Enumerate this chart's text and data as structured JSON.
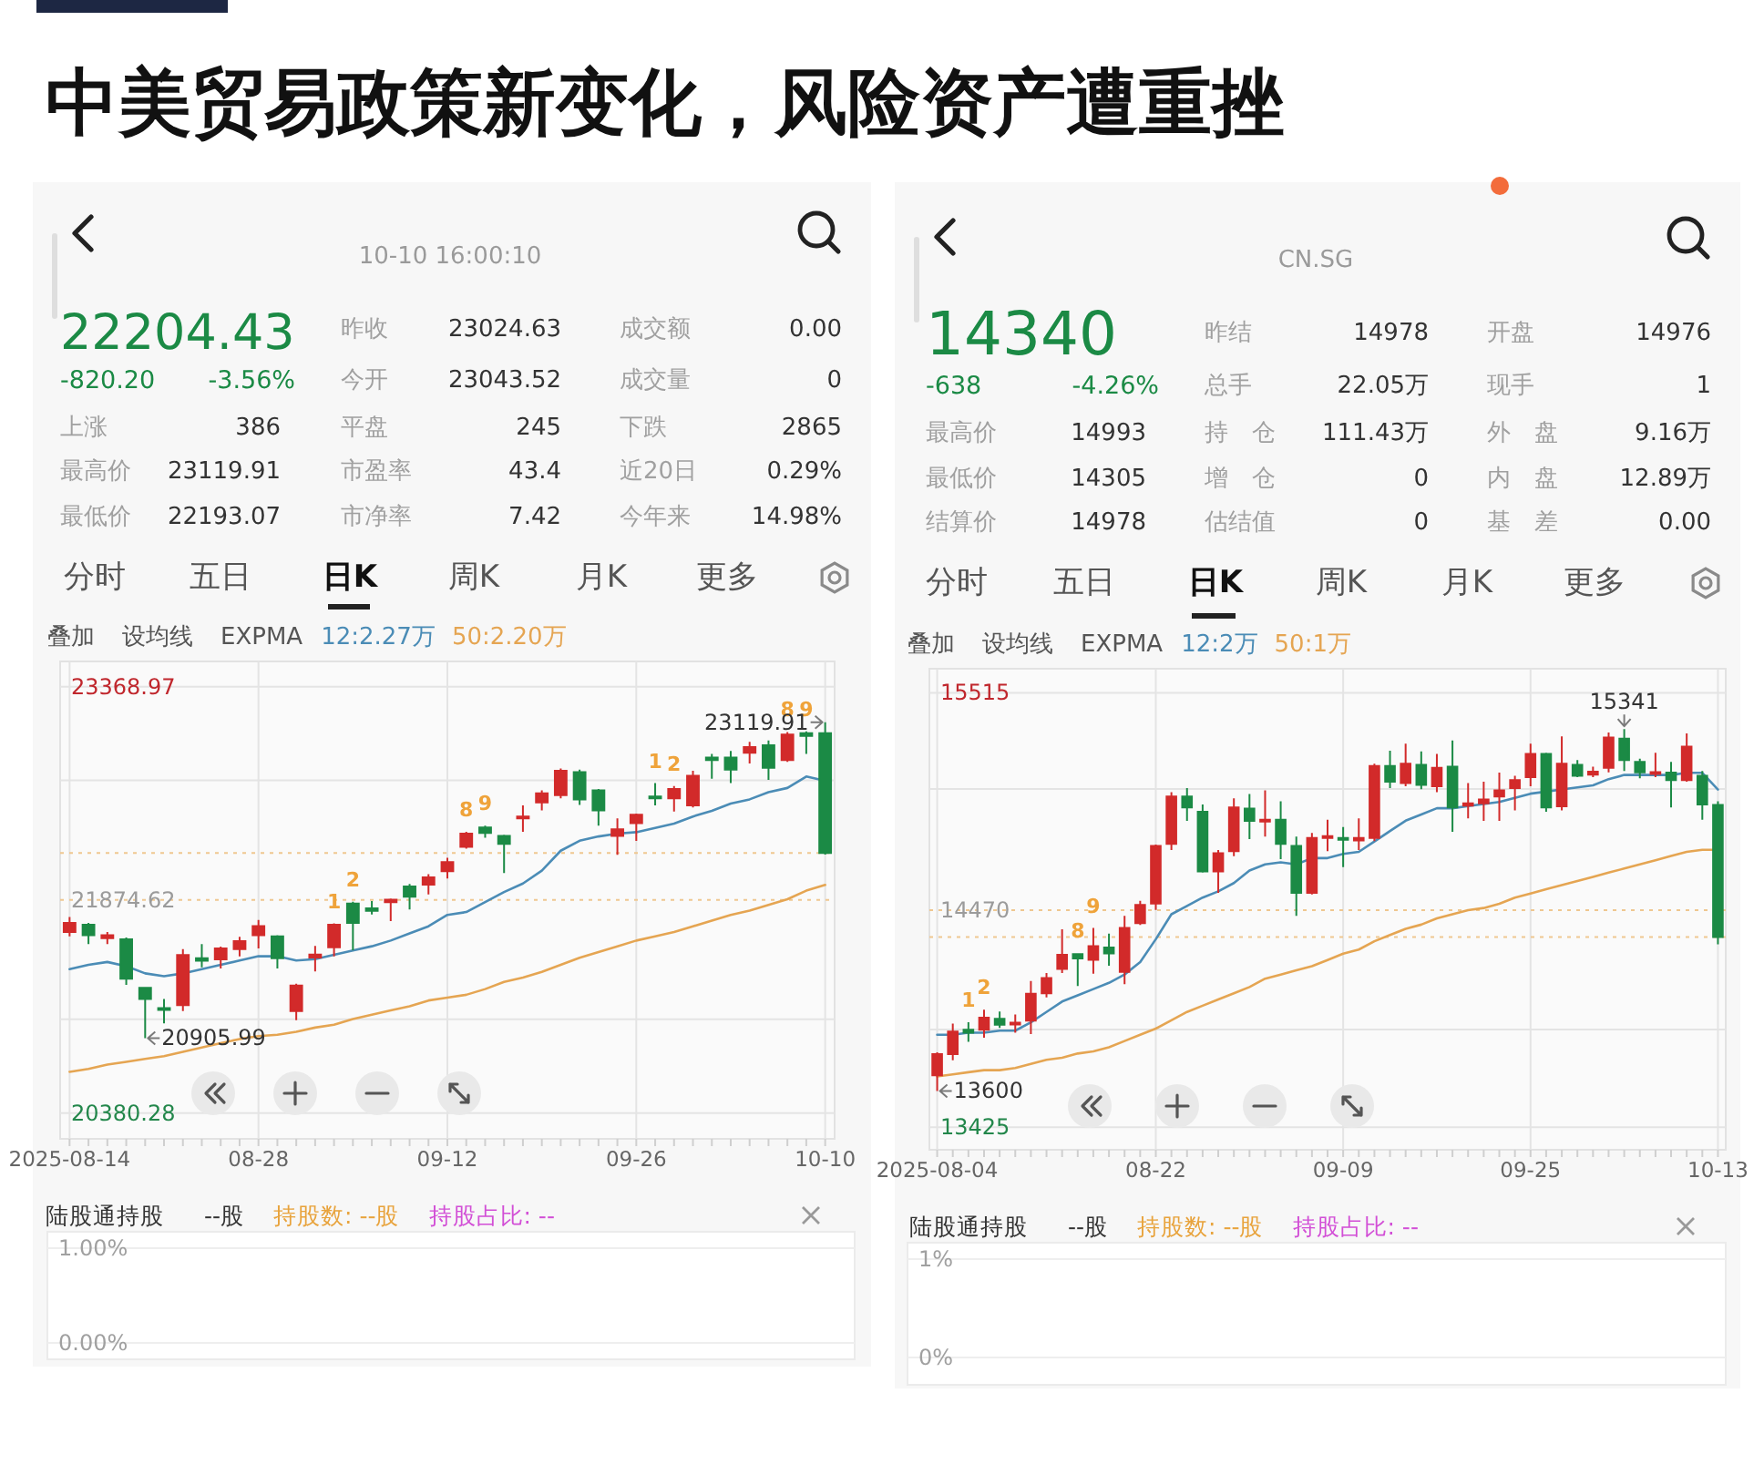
{
  "chart_data": [
    {
      "type": "other",
      "title": "中美贸易政策新变化，风险资产遭重挫"
    },
    {
      "type": "other",
      "subtitle": "10-10 16:00:10",
      "annotations": [
        "22204.43",
        "-820.20",
        "-3.56%",
        "昨收",
        "23024.63",
        "成交额",
        "0.00",
        "今开",
        "23043.52",
        "成交量",
        "0",
        "上涨",
        "386",
        "平盘",
        "245",
        "下跌",
        "2865",
        "最高价",
        "23119.91",
        "市盈率",
        "43.4",
        "近20日",
        "0.29%",
        "最低价",
        "22193.07",
        "市净率",
        "7.42",
        "今年来",
        "14.98%",
        "分时",
        "五日",
        "日K",
        "周K",
        "月K",
        "更多"
      ]
    },
    {
      "type": "candlestick",
      "categories": [
        "2025-08-14",
        null,
        null,
        null,
        null,
        null,
        null,
        null,
        null,
        null,
        "08-28",
        null,
        null,
        null,
        null,
        null,
        null,
        null,
        null,
        null,
        "09-12",
        null,
        null,
        null,
        null,
        null,
        null,
        null,
        null,
        null,
        "09-26",
        null,
        null,
        null,
        null,
        null,
        null,
        null,
        null,
        null,
        "10-10"
      ],
      "ohlc": [
        [
          21650,
          21756,
          21620,
          21714
        ],
        [
          21701,
          21714,
          21565,
          21628
        ],
        [
          21607,
          21650,
          21565,
          21628
        ],
        [
          21599,
          21611,
          21279,
          21322
        ],
        [
          21258,
          21262,
          20905.99,
          21181
        ],
        [
          21117,
          21181,
          21010,
          21104
        ],
        [
          21138,
          21530,
          21096,
          21488
        ],
        [
          21466,
          21565,
          21403,
          21449
        ],
        [
          21458,
          21547,
          21394,
          21535
        ],
        [
          21530,
          21616,
          21479,
          21586
        ],
        [
          21628,
          21735,
          21535,
          21692
        ],
        [
          21620,
          21628,
          21394,
          21466
        ],
        [
          21096,
          21287,
          21032,
          21275
        ],
        [
          21471,
          21552,
          21373,
          21492
        ],
        [
          21543,
          21710,
          21479,
          21701
        ],
        [
          21850,
          21863,
          21522,
          21714
        ],
        [
          21816,
          21867,
          21773,
          21799
        ],
        [
          21859,
          21884,
          21727,
          21876
        ],
        [
          21970,
          21987,
          21808,
          21897
        ],
        [
          21982,
          22055,
          21914,
          22033
        ],
        [
          22076,
          22170,
          22025,
          22140
        ],
        [
          22247,
          22353,
          22234,
          22340
        ],
        [
          22383,
          22396,
          22311,
          22345
        ],
        [
          22323,
          22332,
          22063,
          22268
        ],
        [
          22447,
          22537,
          22353,
          22460
        ],
        [
          22558,
          22643,
          22502,
          22622
        ],
        [
          22609,
          22797,
          22588,
          22780
        ],
        [
          22771,
          22788,
          22541,
          22579
        ],
        [
          22643,
          22652,
          22396,
          22502
        ],
        [
          22323,
          22447,
          22191,
          22370
        ],
        [
          22413,
          22481,
          22289,
          22473
        ],
        [
          22600,
          22694,
          22537,
          22588
        ],
        [
          22588,
          22673,
          22494,
          22652
        ],
        [
          22537,
          22780,
          22524,
          22745
        ],
        [
          22873,
          22899,
          22724,
          22856
        ],
        [
          22873,
          22920,
          22694,
          22788
        ],
        [
          22907,
          22984,
          22831,
          22946
        ],
        [
          22959,
          22993,
          22716,
          22801
        ],
        [
          22856,
          23052,
          22843,
          23035
        ],
        [
          23044,
          23057,
          22899,
          23024.63
        ],
        [
          23043.52,
          23119.91,
          22193.07,
          22204.43
        ]
      ],
      "colors": [
        "#d22a2a",
        "#1b8a45",
        "#d22a2a",
        "#1b8a45",
        "#1b8a45",
        "#1b8a45",
        "#d22a2a",
        "#1b8a45",
        "#d22a2a",
        "#d22a2a",
        "#d22a2a",
        "#1b8a45",
        "#d22a2a",
        "#d22a2a",
        "#d22a2a",
        "#1b8a45",
        "#1b8a45",
        "#d22a2a",
        "#1b8a45",
        "#d22a2a",
        "#d22a2a",
        "#d22a2a",
        "#1b8a45",
        "#1b8a45",
        "#d22a2a",
        "#d22a2a",
        "#d22a2a",
        "#1b8a45",
        "#1b8a45",
        "#d22a2a",
        "#d22a2a",
        "#1b8a45",
        "#d22a2a",
        "#d22a2a",
        "#1b8a45",
        "#1b8a45",
        "#d22a2a",
        "#1b8a45",
        "#d22a2a",
        "#1b8a45",
        "#1b8a45"
      ],
      "series": [
        {
          "type": "line",
          "name": "12:2.27万",
          "color": "#4b8cb6",
          "values": [
            21390,
            21420,
            21440,
            21410,
            21360,
            21340,
            21360,
            21390,
            21420,
            21450,
            21480,
            21480,
            21450,
            21460,
            21490,
            21520,
            21550,
            21590,
            21640,
            21690,
            21770,
            21790,
            21860,
            21930,
            21990,
            22080,
            22220,
            22290,
            22320,
            22340,
            22350,
            22380,
            22410,
            22460,
            22500,
            22550,
            22580,
            22630,
            22660,
            22740,
            22710
          ]
        },
        {
          "type": "line",
          "name": "50:2.20万",
          "color": "#e5a552",
          "values": [
            20670,
            20690,
            20720,
            20740,
            20760,
            20780,
            20810,
            20840,
            20870,
            20900,
            20920,
            20930,
            20950,
            20980,
            21000,
            21040,
            21070,
            21100,
            21130,
            21170,
            21190,
            21210,
            21250,
            21300,
            21330,
            21370,
            21420,
            21470,
            21510,
            21550,
            21590,
            21620,
            21650,
            21690,
            21730,
            21770,
            21800,
            21840,
            21880,
            21940,
            21980
          ]
        }
      ],
      "legend": "top left",
      "legend_title": "EXPMA",
      "ylim": [
        20200,
        23547
      ],
      "yticks": [
        23368.97,
        {
          "value": 22713,
          "label": null
        },
        21874.62,
        {
          "value": 21038,
          "label": null
        },
        20380.28
      ],
      "grid": true,
      "ref_lines": [
        {
          "axis": "y",
          "value": 22204.43,
          "line_style": "dotted",
          "color": "#efc790"
        },
        {
          "axis": "y",
          "value": 21874.62,
          "line_style": "dotted",
          "color": "#efc790"
        }
      ],
      "annotations": [
        "叠加",
        "设均线",
        {
          "text": "1",
          "y": 21710
        },
        {
          "text": "2",
          "y": 21863
        },
        {
          "text": "8",
          "y": 22353
        },
        {
          "text": "9",
          "y": 22396
        },
        {
          "text": "1",
          "y": 22694
        },
        {
          "text": "2",
          "y": 22673
        },
        {
          "text": "8",
          "y": 23052
        },
        {
          "text": "9",
          "y": 23057
        },
        {
          "text": "23119.91",
          "x": "10-10",
          "y": 23119.91
        },
        {
          "text": "20905.99",
          "y": 20905.99
        }
      ]
    },
    {
      "type": "line",
      "title": "陆股通持股",
      "series": [
        {
          "name": "--股",
          "color": "#333333"
        },
        {
          "name": "持股数: --股",
          "color": "#e8a33c"
        },
        {
          "name": "持股占比: --",
          "color": "#d24fd6"
        }
      ],
      "ylim": [
        0,
        1
      ],
      "yticks": [
        {
          "value": 0,
          "label": "0.00%"
        },
        {
          "value": 1,
          "label": "1.00%"
        }
      ],
      "grid": "y"
    },
    {
      "type": "other",
      "subtitle": "CN.SG",
      "annotations": [
        "14340",
        "-638",
        "-4.26%",
        "昨结",
        "14978",
        "开盘",
        "14976",
        "总手",
        "22.05万",
        "现手",
        "1",
        "最高价",
        "14993",
        "持　仓",
        "111.43万",
        "外　盘",
        "9.16万",
        "最低价",
        "14305",
        "增　仓",
        "0",
        "内　盘",
        "12.89万",
        "结算价",
        "14978",
        "估结值",
        "0",
        "基　差",
        "0.00",
        "分时",
        "五日",
        "日K",
        "周K",
        "月K",
        "更多"
      ]
    },
    {
      "type": "candlestick",
      "categories": [
        "2025-08-04",
        null,
        null,
        null,
        null,
        null,
        null,
        null,
        null,
        null,
        null,
        null,
        null,
        null,
        "08-22",
        null,
        null,
        null,
        null,
        null,
        null,
        null,
        null,
        null,
        null,
        null,
        "09-09",
        null,
        null,
        null,
        null,
        null,
        null,
        null,
        null,
        null,
        null,
        null,
        "09-25",
        null,
        null,
        null,
        null,
        null,
        null,
        null,
        null,
        null,
        null,
        null,
        "10-13"
      ],
      "ohlc": [
        [
          13675,
          13786,
          13600,
          13777
        ],
        [
          13777,
          13924,
          13748,
          13886
        ],
        [
          13894,
          13930,
          13836,
          13880
        ],
        [
          13894,
          13991,
          13856,
          13953
        ],
        [
          13947,
          13982,
          13903,
          13918
        ],
        [
          13921,
          13968,
          13880,
          13927
        ],
        [
          13938,
          14129,
          13874,
          14067
        ],
        [
          14070,
          14167,
          14050,
          14143
        ],
        [
          14187,
          14378,
          14167,
          14255
        ],
        [
          14258,
          14263,
          14105,
          14237
        ],
        [
          14231,
          14384,
          14164,
          14296
        ],
        [
          14290,
          14357,
          14202,
          14261
        ],
        [
          14173,
          14442,
          14114,
          14384
        ],
        [
          14407,
          14515,
          14398,
          14495
        ],
        [
          14501,
          14785,
          14471,
          14779
        ],
        [
          14788,
          15037,
          14759,
          15016
        ],
        [
          15016,
          15057,
          14899,
          14964
        ],
        [
          14943,
          14978,
          14650,
          14656
        ],
        [
          14656,
          14759,
          14553,
          14744
        ],
        [
          14753,
          15008,
          14729,
          14964
        ],
        [
          14958,
          15028,
          14811,
          14899
        ],
        [
          14896,
          15046,
          14823,
          14905
        ],
        [
          14905,
          14993,
          14715,
          14788
        ],
        [
          14779,
          14823,
          14442,
          14553
        ],
        [
          14553,
          14841,
          14545,
          14817
        ],
        [
          14817,
          14905,
          14753,
          14826
        ],
        [
          14817,
          14870,
          14677,
          14808
        ],
        [
          14805,
          14911,
          14759,
          14817
        ],
        [
          14817,
          15174,
          14802,
          15163
        ],
        [
          15163,
          15236,
          15057,
          15087
        ],
        [
          15081,
          15271,
          15066,
          15174
        ],
        [
          15169,
          15233,
          15051,
          15072
        ],
        [
          15066,
          15221,
          15037,
          15154
        ],
        [
          15160,
          15286,
          14846,
          14964
        ],
        [
          14972,
          15081,
          14911,
          14984
        ],
        [
          14984,
          15087,
          14899,
          15002
        ],
        [
          15016,
          15131,
          14899,
          15046
        ],
        [
          15057,
          15116,
          14949,
          15095
        ],
        [
          15110,
          15271,
          15066,
          15221
        ],
        [
          15221,
          15227,
          14943,
          14964
        ],
        [
          14969,
          15306,
          14949,
          15174
        ],
        [
          15169,
          15192,
          15110,
          15116
        ],
        [
          15122,
          15160,
          15110,
          15136
        ],
        [
          15154,
          15324,
          15133,
          15300
        ],
        [
          15295,
          15341,
          15139,
          15192
        ],
        [
          15183,
          15198,
          15104,
          15133
        ],
        [
          15125,
          15227,
          15110,
          15133
        ],
        [
          15131,
          15183,
          14964,
          15095
        ],
        [
          15095,
          15320,
          15087,
          15256
        ],
        [
          15116,
          15139,
          14905,
          14978
        ],
        [
          14976,
          14993,
          14305,
          14340
        ]
      ],
      "colors": [
        "#d22a2a",
        "#d22a2a",
        "#1b8a45",
        "#d22a2a",
        "#1b8a45",
        "#d22a2a",
        "#d22a2a",
        "#d22a2a",
        "#d22a2a",
        "#1b8a45",
        "#d22a2a",
        "#1b8a45",
        "#d22a2a",
        "#d22a2a",
        "#d22a2a",
        "#d22a2a",
        "#1b8a45",
        "#1b8a45",
        "#d22a2a",
        "#d22a2a",
        "#1b8a45",
        "#d22a2a",
        "#1b8a45",
        "#1b8a45",
        "#d22a2a",
        "#d22a2a",
        "#1b8a45",
        "#d22a2a",
        "#d22a2a",
        "#1b8a45",
        "#d22a2a",
        "#1b8a45",
        "#d22a2a",
        "#1b8a45",
        "#d22a2a",
        "#d22a2a",
        "#d22a2a",
        "#d22a2a",
        "#d22a2a",
        "#1b8a45",
        "#d22a2a",
        "#1b8a45",
        "#d22a2a",
        "#d22a2a",
        "#1b8a45",
        "#1b8a45",
        "#d22a2a",
        "#1b8a45",
        "#d22a2a",
        "#1b8a45",
        "#1b8a45"
      ],
      "series": [
        {
          "type": "line",
          "name": "12:2万",
          "color": "#4b8cb6",
          "values": [
            13870,
            13870,
            13880,
            13880,
            13890,
            13890,
            13930,
            13980,
            14030,
            14060,
            14090,
            14120,
            14160,
            14220,
            14330,
            14450,
            14490,
            14530,
            14560,
            14600,
            14660,
            14690,
            14700,
            14690,
            14720,
            14720,
            14740,
            14750,
            14800,
            14850,
            14900,
            14930,
            14960,
            14960,
            14970,
            14980,
            14990,
            15010,
            15030,
            15040,
            15050,
            15060,
            15070,
            15100,
            15120,
            15120,
            15120,
            15120,
            15130,
            15130,
            15050
          ]
        },
        {
          "type": "line",
          "name": "50:1万",
          "color": "#e5a552",
          "values": [
            13670,
            13680,
            13690,
            13700,
            13700,
            13710,
            13730,
            13750,
            13760,
            13780,
            13790,
            13810,
            13840,
            13870,
            13900,
            13940,
            13980,
            14010,
            14040,
            14070,
            14100,
            14140,
            14160,
            14180,
            14200,
            14230,
            14260,
            14280,
            14320,
            14350,
            14380,
            14400,
            14430,
            14450,
            14470,
            14480,
            14500,
            14530,
            14550,
            14570,
            14590,
            14610,
            14630,
            14650,
            14670,
            14690,
            14710,
            14730,
            14750,
            14760,
            14760
          ]
        }
      ],
      "legend": "top left",
      "legend_title": "EXPMA",
      "ylim": [
        13317,
        15631
      ],
      "yticks": [
        15515,
        {
          "value": 15053,
          "label": null
        },
        14470,
        {
          "value": 13895,
          "label": null
        },
        13425
      ],
      "grid": true,
      "ref_lines": [
        {
          "axis": "y",
          "value": 14340,
          "line_style": "dotted",
          "color": "#efc790"
        },
        {
          "axis": "y",
          "value": 14470,
          "line_style": "dotted",
          "color": "#efc790"
        }
      ],
      "annotations": [
        "叠加",
        "设均线",
        {
          "text": "1",
          "y": 13930
        },
        {
          "text": "2",
          "y": 13991
        },
        {
          "text": "8",
          "y": 14263
        },
        {
          "text": "9",
          "y": 14384
        },
        {
          "text": "15341",
          "y": 15341
        },
        {
          "text": "13600",
          "x": "2025-08-04",
          "y": 13600
        }
      ]
    },
    {
      "type": "line",
      "title": "陆股通持股",
      "series": [
        {
          "name": "--股",
          "color": "#333333"
        },
        {
          "name": "持股数: --股",
          "color": "#e8a33c"
        },
        {
          "name": "持股占比: --",
          "color": "#d24fd6"
        }
      ],
      "ylim": [
        0,
        1
      ],
      "yticks": [
        {
          "value": 0,
          "label": "0%"
        },
        {
          "value": 1,
          "label": "1%"
        }
      ],
      "grid": "y"
    }
  ]
}
